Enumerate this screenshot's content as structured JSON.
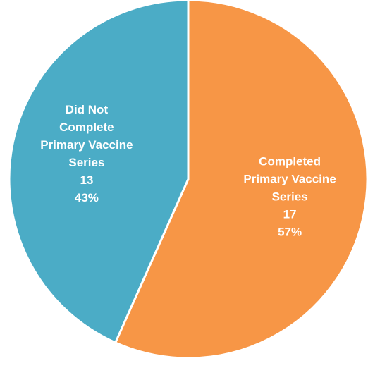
{
  "chart_data": {
    "type": "pie",
    "title": "",
    "start_angle_deg": 0,
    "direction": "clockwise",
    "slices": [
      {
        "label_lines": [
          "Completed",
          "Primary Vaccine",
          "Series"
        ],
        "value": 17,
        "value_text": "17",
        "percent_text": "57%",
        "color": "#F79646"
      },
      {
        "label_lines": [
          "Did Not",
          "Complete",
          "Primary Vaccine",
          "Series"
        ],
        "value": 13,
        "value_text": "13",
        "percent_text": "43%",
        "color": "#4BACC6"
      }
    ],
    "colors": {
      "separator": "#FFFFFF",
      "label_text": "#FFFFFF"
    },
    "legend": "none",
    "grid": false
  }
}
